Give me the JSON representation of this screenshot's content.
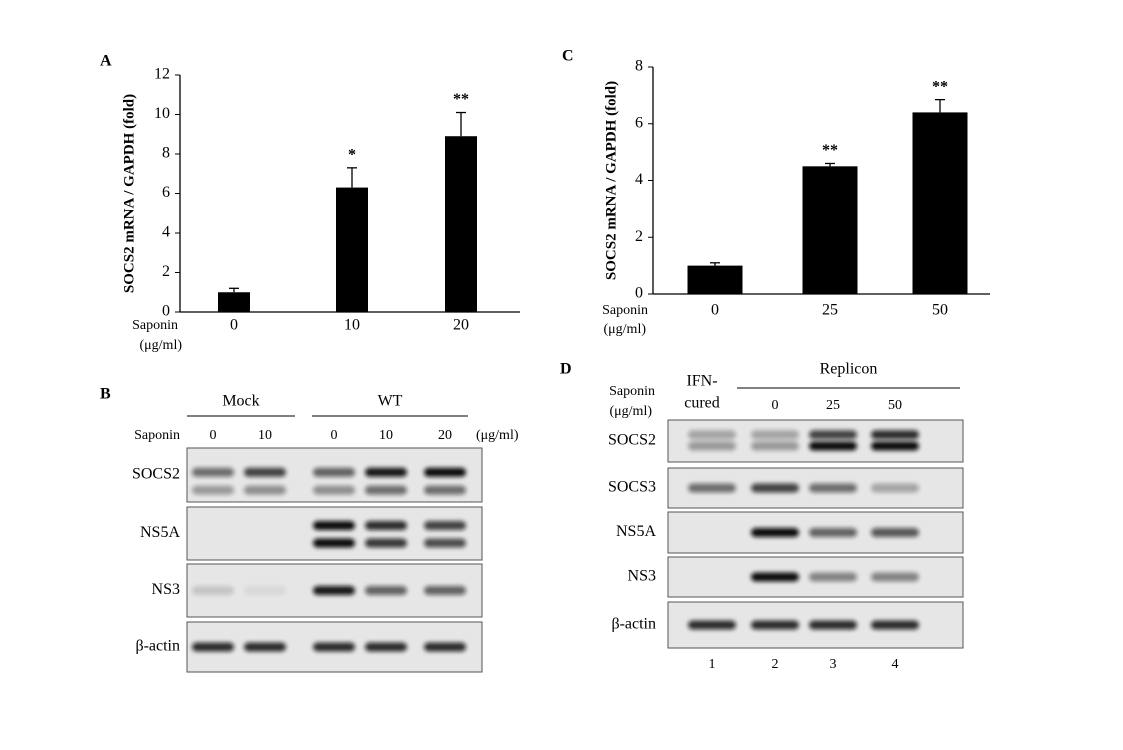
{
  "chart_data": [
    {
      "type": "bar",
      "panel": "A",
      "ylabel": "SOCS2 mRNA / GAPDH (fold)",
      "xlabel": [
        "Saponin",
        "(μg/ml)"
      ],
      "categories": [
        "0",
        "10",
        "20"
      ],
      "values": [
        1,
        6.3,
        8.9
      ],
      "errors": [
        0.2,
        1.0,
        1.2
      ],
      "annotations": [
        null,
        "*",
        "**"
      ],
      "color": "#000000",
      "ylim": [
        0,
        12
      ],
      "yticks": [
        0,
        2,
        4,
        6,
        8,
        10,
        12
      ]
    },
    {
      "type": "bar",
      "panel": "C",
      "ylabel": "SOCS2 mRNA / GAPDH (fold)",
      "xlabel": [
        "Saponin",
        "(μg/ml)"
      ],
      "categories": [
        "0",
        "25",
        "50"
      ],
      "values": [
        1,
        4.5,
        6.4
      ],
      "errors": [
        0.1,
        0.1,
        0.45
      ],
      "annotations": [
        null,
        "**",
        "**"
      ],
      "color": "#000000",
      "ylim": [
        0,
        8
      ],
      "yticks": [
        0,
        2,
        4,
        6,
        8
      ]
    }
  ],
  "blots": [
    {
      "panel": "B",
      "treatment_label": "Saponin",
      "unit": "(μg/ml)",
      "groups": [
        {
          "name": "Mock",
          "lanes": [
            "0",
            "10"
          ]
        },
        {
          "name": "WT",
          "lanes": [
            "0",
            "10",
            "20"
          ]
        }
      ],
      "rows": [
        "SOCS2",
        "NS5A",
        "NS3",
        "β-actin"
      ]
    },
    {
      "panel": "D",
      "treatment_label": "Saponin",
      "unit": "(μg/ml)",
      "control_lane": [
        "IFN-",
        "cured"
      ],
      "groups": [
        {
          "name": "Replicon",
          "lanes": [
            "0",
            "25",
            "50"
          ]
        }
      ],
      "rows": [
        "SOCS2",
        "SOCS3",
        "NS5A",
        "NS3",
        "β-actin"
      ],
      "lane_numbers": [
        "1",
        "2",
        "3",
        "4"
      ]
    }
  ]
}
